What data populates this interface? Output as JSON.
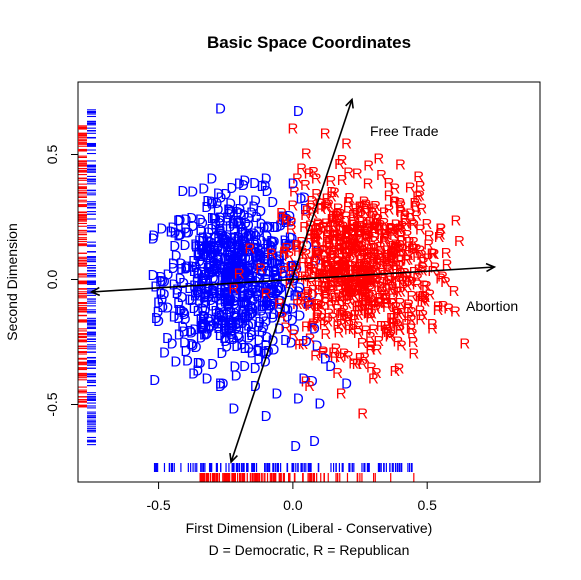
{
  "chart_data": {
    "type": "scatter",
    "title": "Basic Space Coordinates",
    "xlabel": "First Dimension (Liberal - Conservative)",
    "xlabel2": "D = Democratic, R = Republican",
    "ylabel": "Second Dimension",
    "xlim": [
      -0.8,
      0.92
    ],
    "ylim": [
      -0.81,
      0.79
    ],
    "xticks": [
      -0.5,
      0.0,
      0.5
    ],
    "xtick_labels": [
      "-0.5",
      "0.0",
      "0.5"
    ],
    "yticks": [
      -0.5,
      0.0,
      0.5
    ],
    "ytick_labels": [
      "-0.5",
      "0.0",
      "0.5"
    ],
    "colors": {
      "democrat": "#0000ff",
      "republican": "#ff0000",
      "axes": "#000000"
    },
    "series": [
      {
        "party": "D",
        "color": "#0000ff",
        "points": [
          [
            -0.27,
            0.68
          ],
          [
            0.02,
            0.67
          ],
          [
            -0.41,
            0.35
          ],
          [
            -0.52,
            0.16
          ],
          [
            -0.5,
            -0.17
          ],
          [
            -0.45,
            -0.26
          ],
          [
            -0.37,
            -0.38
          ],
          [
            -0.32,
            -0.4
          ],
          [
            -0.27,
            -0.43
          ],
          [
            -0.14,
            -0.43
          ],
          [
            0.01,
            -0.67
          ],
          [
            0.08,
            -0.65
          ],
          [
            -0.22,
            -0.52
          ],
          [
            -0.1,
            -0.55
          ],
          [
            0.02,
            -0.48
          ],
          [
            0.1,
            -0.5
          ],
          [
            0.2,
            -0.42
          ],
          [
            -0.3,
            0.3
          ],
          [
            -0.2,
            0.38
          ],
          [
            -0.1,
            0.4
          ],
          [
            0.0,
            0.38
          ],
          [
            0.03,
            0.32
          ],
          [
            -0.35,
            0.1
          ],
          [
            -0.42,
            0.0
          ],
          [
            -0.3,
            -0.05
          ],
          [
            -0.2,
            0.05
          ],
          [
            -0.15,
            -0.12
          ],
          [
            -0.05,
            -0.2
          ],
          [
            -0.25,
            -0.25
          ],
          [
            -0.1,
            -0.3
          ],
          [
            0.05,
            -0.25
          ],
          [
            -0.4,
            0.2
          ],
          [
            -0.22,
            0.22
          ],
          [
            -0.08,
            0.15
          ],
          [
            0.0,
            0.05
          ],
          [
            -0.33,
            -0.15
          ],
          [
            -0.18,
            -0.35
          ],
          [
            0.04,
            -0.4
          ],
          [
            -0.06,
            -0.46
          ],
          [
            0.12,
            -0.32
          ],
          [
            0.0,
            -0.12
          ],
          [
            -0.12,
            0.27
          ],
          [
            -0.37,
            0.07
          ],
          [
            -0.28,
            0.12
          ],
          [
            -0.24,
            -0.1
          ],
          [
            -0.44,
            0.13
          ],
          [
            0.14,
            -0.35
          ],
          [
            0.08,
            -0.2
          ],
          [
            -0.04,
            0.02
          ],
          [
            -0.2,
            -0.18
          ]
        ]
      },
      {
        "party": "R",
        "color": "#ff0000",
        "points": [
          [
            0.0,
            0.6
          ],
          [
            0.12,
            0.58
          ],
          [
            0.2,
            0.54
          ],
          [
            0.32,
            0.48
          ],
          [
            0.05,
            0.5
          ],
          [
            0.28,
            0.38
          ],
          [
            0.38,
            0.36
          ],
          [
            0.48,
            0.28
          ],
          [
            0.55,
            0.2
          ],
          [
            0.62,
            0.15
          ],
          [
            0.55,
            0.0
          ],
          [
            0.6,
            -0.05
          ],
          [
            0.64,
            -0.26
          ],
          [
            0.52,
            -0.2
          ],
          [
            0.45,
            -0.3
          ],
          [
            0.38,
            -0.37
          ],
          [
            0.3,
            -0.4
          ],
          [
            0.26,
            -0.54
          ],
          [
            0.18,
            -0.46
          ],
          [
            0.4,
            0.05
          ],
          [
            0.25,
            0.15
          ],
          [
            0.15,
            0.25
          ],
          [
            0.1,
            0.3
          ],
          [
            0.35,
            -0.1
          ],
          [
            0.2,
            -0.15
          ],
          [
            0.12,
            -0.05
          ],
          [
            0.22,
            0.05
          ],
          [
            0.3,
            0.25
          ],
          [
            0.45,
            0.12
          ],
          [
            -0.2,
            0.02
          ],
          [
            -0.12,
            0.04
          ],
          [
            -0.08,
            0.1
          ],
          [
            -0.16,
            0.12
          ],
          [
            -0.22,
            -0.04
          ],
          [
            -0.05,
            -0.1
          ],
          [
            -0.1,
            -0.06
          ],
          [
            0.48,
            -0.08
          ],
          [
            0.42,
            0.22
          ],
          [
            0.52,
            0.1
          ],
          [
            0.32,
            -0.25
          ],
          [
            0.08,
            0.18
          ],
          [
            0.16,
            -0.28
          ],
          [
            0.26,
            -0.08
          ],
          [
            0.36,
            0.05
          ],
          [
            0.58,
            -0.12
          ],
          [
            0.34,
            0.15
          ],
          [
            0.06,
            0.42
          ],
          [
            0.24,
            0.42
          ],
          [
            0.15,
            0.05
          ],
          [
            0.44,
            -0.2
          ]
        ]
      }
    ],
    "arrows": [
      {
        "label": "Free Trade",
        "from": [
          -0.23,
          -0.73
        ],
        "to": [
          0.22,
          0.72
        ]
      },
      {
        "label": "Abortion",
        "from": [
          -0.75,
          -0.05
        ],
        "to": [
          0.75,
          0.05
        ]
      }
    ],
    "rug_x": {
      "democrat": [
        -0.52,
        0.45
      ],
      "republican": [
        -0.35,
        0.65
      ]
    },
    "rug_y": {
      "democrat": [
        -0.67,
        0.69
      ],
      "republican": [
        -0.52,
        0.62
      ]
    }
  }
}
